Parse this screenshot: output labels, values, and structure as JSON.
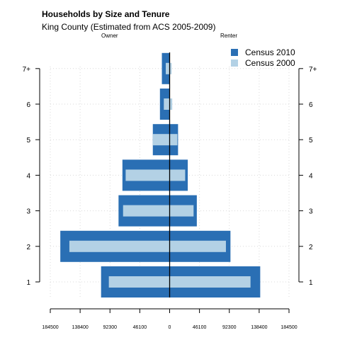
{
  "chart_data": {
    "type": "bar",
    "orientation": "horizontal",
    "title": "Households by Size and Tenure",
    "subtitle": "King County (Estimated from ACS 2005-2009)",
    "left_label": "Owner",
    "right_label": "Renter",
    "categories": [
      "1",
      "2",
      "3",
      "4",
      "5",
      "6",
      "7+"
    ],
    "x_ticks": [
      "184500",
      "138400",
      "92300",
      "46100",
      "0",
      "46100",
      "92300",
      "138400",
      "184500"
    ],
    "xlim": [
      -184500,
      184500
    ],
    "grid": true,
    "legend_position": "top-right",
    "series": [
      {
        "name": "Census 2010",
        "color": "#2a6fb4",
        "owner": [
          106000,
          169000,
          79000,
          73000,
          26000,
          15000,
          12000
        ],
        "renter": [
          140000,
          94000,
          42000,
          28000,
          13000,
          0,
          0
        ]
      },
      {
        "name": "Census 2000",
        "color": "#b3d1e5",
        "owner": [
          94000,
          155000,
          72000,
          68000,
          26000,
          9000,
          6000
        ],
        "renter": [
          125000,
          87000,
          37000,
          24000,
          12000,
          4000,
          3000
        ]
      }
    ]
  }
}
